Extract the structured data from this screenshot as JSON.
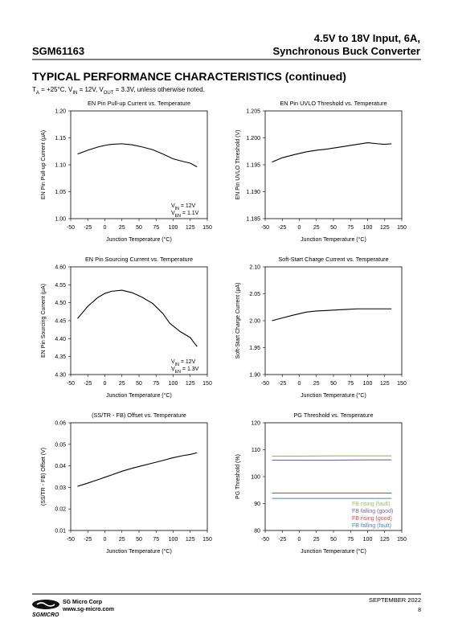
{
  "header": {
    "title_line1": "4.5V to 18V Input, 6A,",
    "title_line2": "Synchronous Buck Converter",
    "part": "SGM61163"
  },
  "section_title": "TYPICAL PERFORMANCE CHARACTERISTICS (continued)",
  "conditions": [
    {
      "text": "T"
    },
    {
      "text": "A",
      "sub": true
    },
    {
      "text": " = +25°C, V"
    },
    {
      "text": "IN",
      "sub": true
    },
    {
      "text": " = 12V, V"
    },
    {
      "text": "OUT",
      "sub": true
    },
    {
      "text": " = 3.3V, unless otherwise noted."
    }
  ],
  "chart_data": [
    {
      "type": "line",
      "title": "EN Pin Pull-up Current vs. Temperature",
      "xlabel": "Junction Temperature (°C)",
      "ylabel": "EN Pin Pull-up Current (μA)",
      "color": "#000000",
      "x": [
        -40,
        -25,
        -10,
        0,
        10,
        25,
        40,
        55,
        70,
        85,
        100,
        115,
        125,
        135
      ],
      "values": [
        1.12,
        1.127,
        1.133,
        1.136,
        1.138,
        1.139,
        1.137,
        1.133,
        1.128,
        1.12,
        1.111,
        1.106,
        1.103,
        1.096
      ],
      "xlim": [
        -50,
        150
      ],
      "xticks": [
        -50,
        -25,
        0,
        25,
        50,
        75,
        100,
        125,
        150
      ],
      "ylim": [
        1.0,
        1.2
      ],
      "yticks": [
        {
          "value": 1.0,
          "label": "1.00"
        },
        1.05,
        {
          "value": 1.1,
          "label": "1.10"
        },
        1.15,
        {
          "value": 1.2,
          "label": "1.20"
        }
      ],
      "annotations": [
        [
          {
            "text": "V"
          },
          {
            "text": "IN",
            "sub": true
          },
          {
            "text": " = 12V"
          }
        ],
        [
          {
            "text": "V"
          },
          {
            "text": "EN",
            "sub": true
          },
          {
            "text": " = 1.1V"
          }
        ]
      ]
    },
    {
      "type": "line",
      "title": "EN Pin UVLO Threshold vs. Temperature",
      "xlabel": "Junction Temperature (°C)",
      "ylabel": "EN Pin UVLO Threshold (V)",
      "color": "#000000",
      "x": [
        -40,
        -25,
        -10,
        0,
        10,
        25,
        40,
        55,
        70,
        85,
        100,
        115,
        125,
        135
      ],
      "values": [
        1.1955,
        1.1963,
        1.1968,
        1.1971,
        1.1974,
        1.1977,
        1.1979,
        1.1982,
        1.1985,
        1.1988,
        1.1991,
        1.1989,
        1.1988,
        1.1989
      ],
      "xlim": [
        -50,
        150
      ],
      "xticks": [
        -50,
        -25,
        0,
        25,
        50,
        75,
        100,
        125,
        150
      ],
      "ylim": [
        1.185,
        1.205
      ],
      "yticks": [
        1.185,
        {
          "value": 1.19,
          "label": "1.190"
        },
        1.195,
        {
          "value": 1.2,
          "label": "1.200"
        },
        1.205
      ]
    },
    {
      "type": "line",
      "title": "EN Pin Sourcing Current vs. Temperature",
      "xlabel": "Junction Temperature (°C)",
      "ylabel": "EN Pin Sourcing Current (μA)",
      "color": "#000000",
      "x": [
        -40,
        -25,
        -10,
        0,
        10,
        25,
        40,
        55,
        70,
        85,
        95,
        110,
        125,
        135
      ],
      "values": [
        4.456,
        4.49,
        4.515,
        4.526,
        4.532,
        4.535,
        4.528,
        4.515,
        4.498,
        4.47,
        4.443,
        4.42,
        4.403,
        4.378
      ],
      "xlim": [
        -50,
        150
      ],
      "xticks": [
        -50,
        -25,
        0,
        25,
        50,
        75,
        100,
        125,
        150
      ],
      "ylim": [
        4.3,
        4.6
      ],
      "yticks": [
        {
          "value": 4.3,
          "label": "4.30"
        },
        4.35,
        {
          "value": 4.4,
          "label": "4.40"
        },
        4.45,
        {
          "value": 4.5,
          "label": "4.50"
        },
        4.55,
        {
          "value": 4.6,
          "label": "4.60"
        }
      ],
      "annotations": [
        [
          {
            "text": "V"
          },
          {
            "text": "IN",
            "sub": true
          },
          {
            "text": " = 12V"
          }
        ],
        [
          {
            "text": "V"
          },
          {
            "text": "EN",
            "sub": true
          },
          {
            "text": " = 1.3V"
          }
        ]
      ]
    },
    {
      "type": "line",
      "title": "Soft-Start Charge Current vs. Temperature",
      "xlabel": "Junction Temperature (°C)",
      "ylabel": "Soft-Start Charge Current (μA)",
      "color": "#000000",
      "x": [
        -40,
        -25,
        -10,
        0,
        10,
        25,
        40,
        55,
        70,
        85,
        100,
        115,
        125,
        135
      ],
      "values": [
        2.0,
        2.005,
        2.01,
        2.013,
        2.016,
        2.018,
        2.019,
        2.02,
        2.021,
        2.022,
        2.022,
        2.022,
        2.022,
        2.022
      ],
      "xlim": [
        -50,
        150
      ],
      "xticks": [
        -50,
        -25,
        0,
        25,
        50,
        75,
        100,
        125,
        150
      ],
      "ylim": [
        1.9,
        2.1
      ],
      "yticks": [
        {
          "value": 1.9,
          "label": "1.90"
        },
        1.95,
        {
          "value": 2.0,
          "label": "2.00"
        },
        2.05,
        {
          "value": 2.1,
          "label": "2.10"
        }
      ]
    },
    {
      "type": "line",
      "title": "(SS/TR - FB) Offset vs. Temperature",
      "xlabel": "Junction Temperature (°C)",
      "ylabel": "(SS/TR - FB) Offset (V)",
      "color": "#000000",
      "x": [
        -40,
        -25,
        -10,
        0,
        10,
        25,
        40,
        55,
        70,
        85,
        100,
        115,
        125,
        135
      ],
      "values": [
        0.0305,
        0.032,
        0.0336,
        0.0347,
        0.0358,
        0.0375,
        0.0389,
        0.0401,
        0.0413,
        0.0425,
        0.0438,
        0.0448,
        0.0453,
        0.0461
      ],
      "xlim": [
        -50,
        150
      ],
      "xticks": [
        -50,
        -25,
        0,
        25,
        50,
        75,
        100,
        125,
        150
      ],
      "ylim": [
        0.01,
        0.06
      ],
      "yticks": [
        0.01,
        0.02,
        0.03,
        0.04,
        0.05,
        0.06
      ]
    },
    {
      "type": "line",
      "title": "PG Threshold vs. Temperature",
      "xlabel": "Junction Temperature (°C)",
      "ylabel": "PG Threshold  (%)",
      "x": [
        -40,
        0,
        50,
        100,
        135
      ],
      "series": [
        {
          "name": "FB rising (fault)",
          "color": "#9bbb59",
          "values": [
            107.6,
            107.6,
            107.7,
            107.7,
            107.7
          ]
        },
        {
          "name": "FB falling (good)",
          "color": "#8064a2",
          "values": [
            106.1,
            106.1,
            106.1,
            106.2,
            106.2
          ]
        },
        {
          "name": "FB rising (good)",
          "color": "#c0504d",
          "values": [
            93.9,
            93.9,
            93.9,
            93.9,
            93.9
          ]
        },
        {
          "name": "FB falling (fault)",
          "color": "#4f81bd",
          "values": [
            91.9,
            91.9,
            91.9,
            91.9,
            91.9
          ]
        }
      ],
      "xlim": [
        -50,
        150
      ],
      "xticks": [
        -50,
        -25,
        0,
        25,
        50,
        75,
        100,
        125,
        150
      ],
      "ylim": [
        80,
        120
      ],
      "yticks": [
        80,
        90,
        100,
        110,
        120
      ]
    }
  ],
  "footer": {
    "company": "SG Micro Corp",
    "url": "www.sg-micro.com",
    "brand": "SGMICRO",
    "date": "SEPTEMBER  2022",
    "page": "8"
  }
}
